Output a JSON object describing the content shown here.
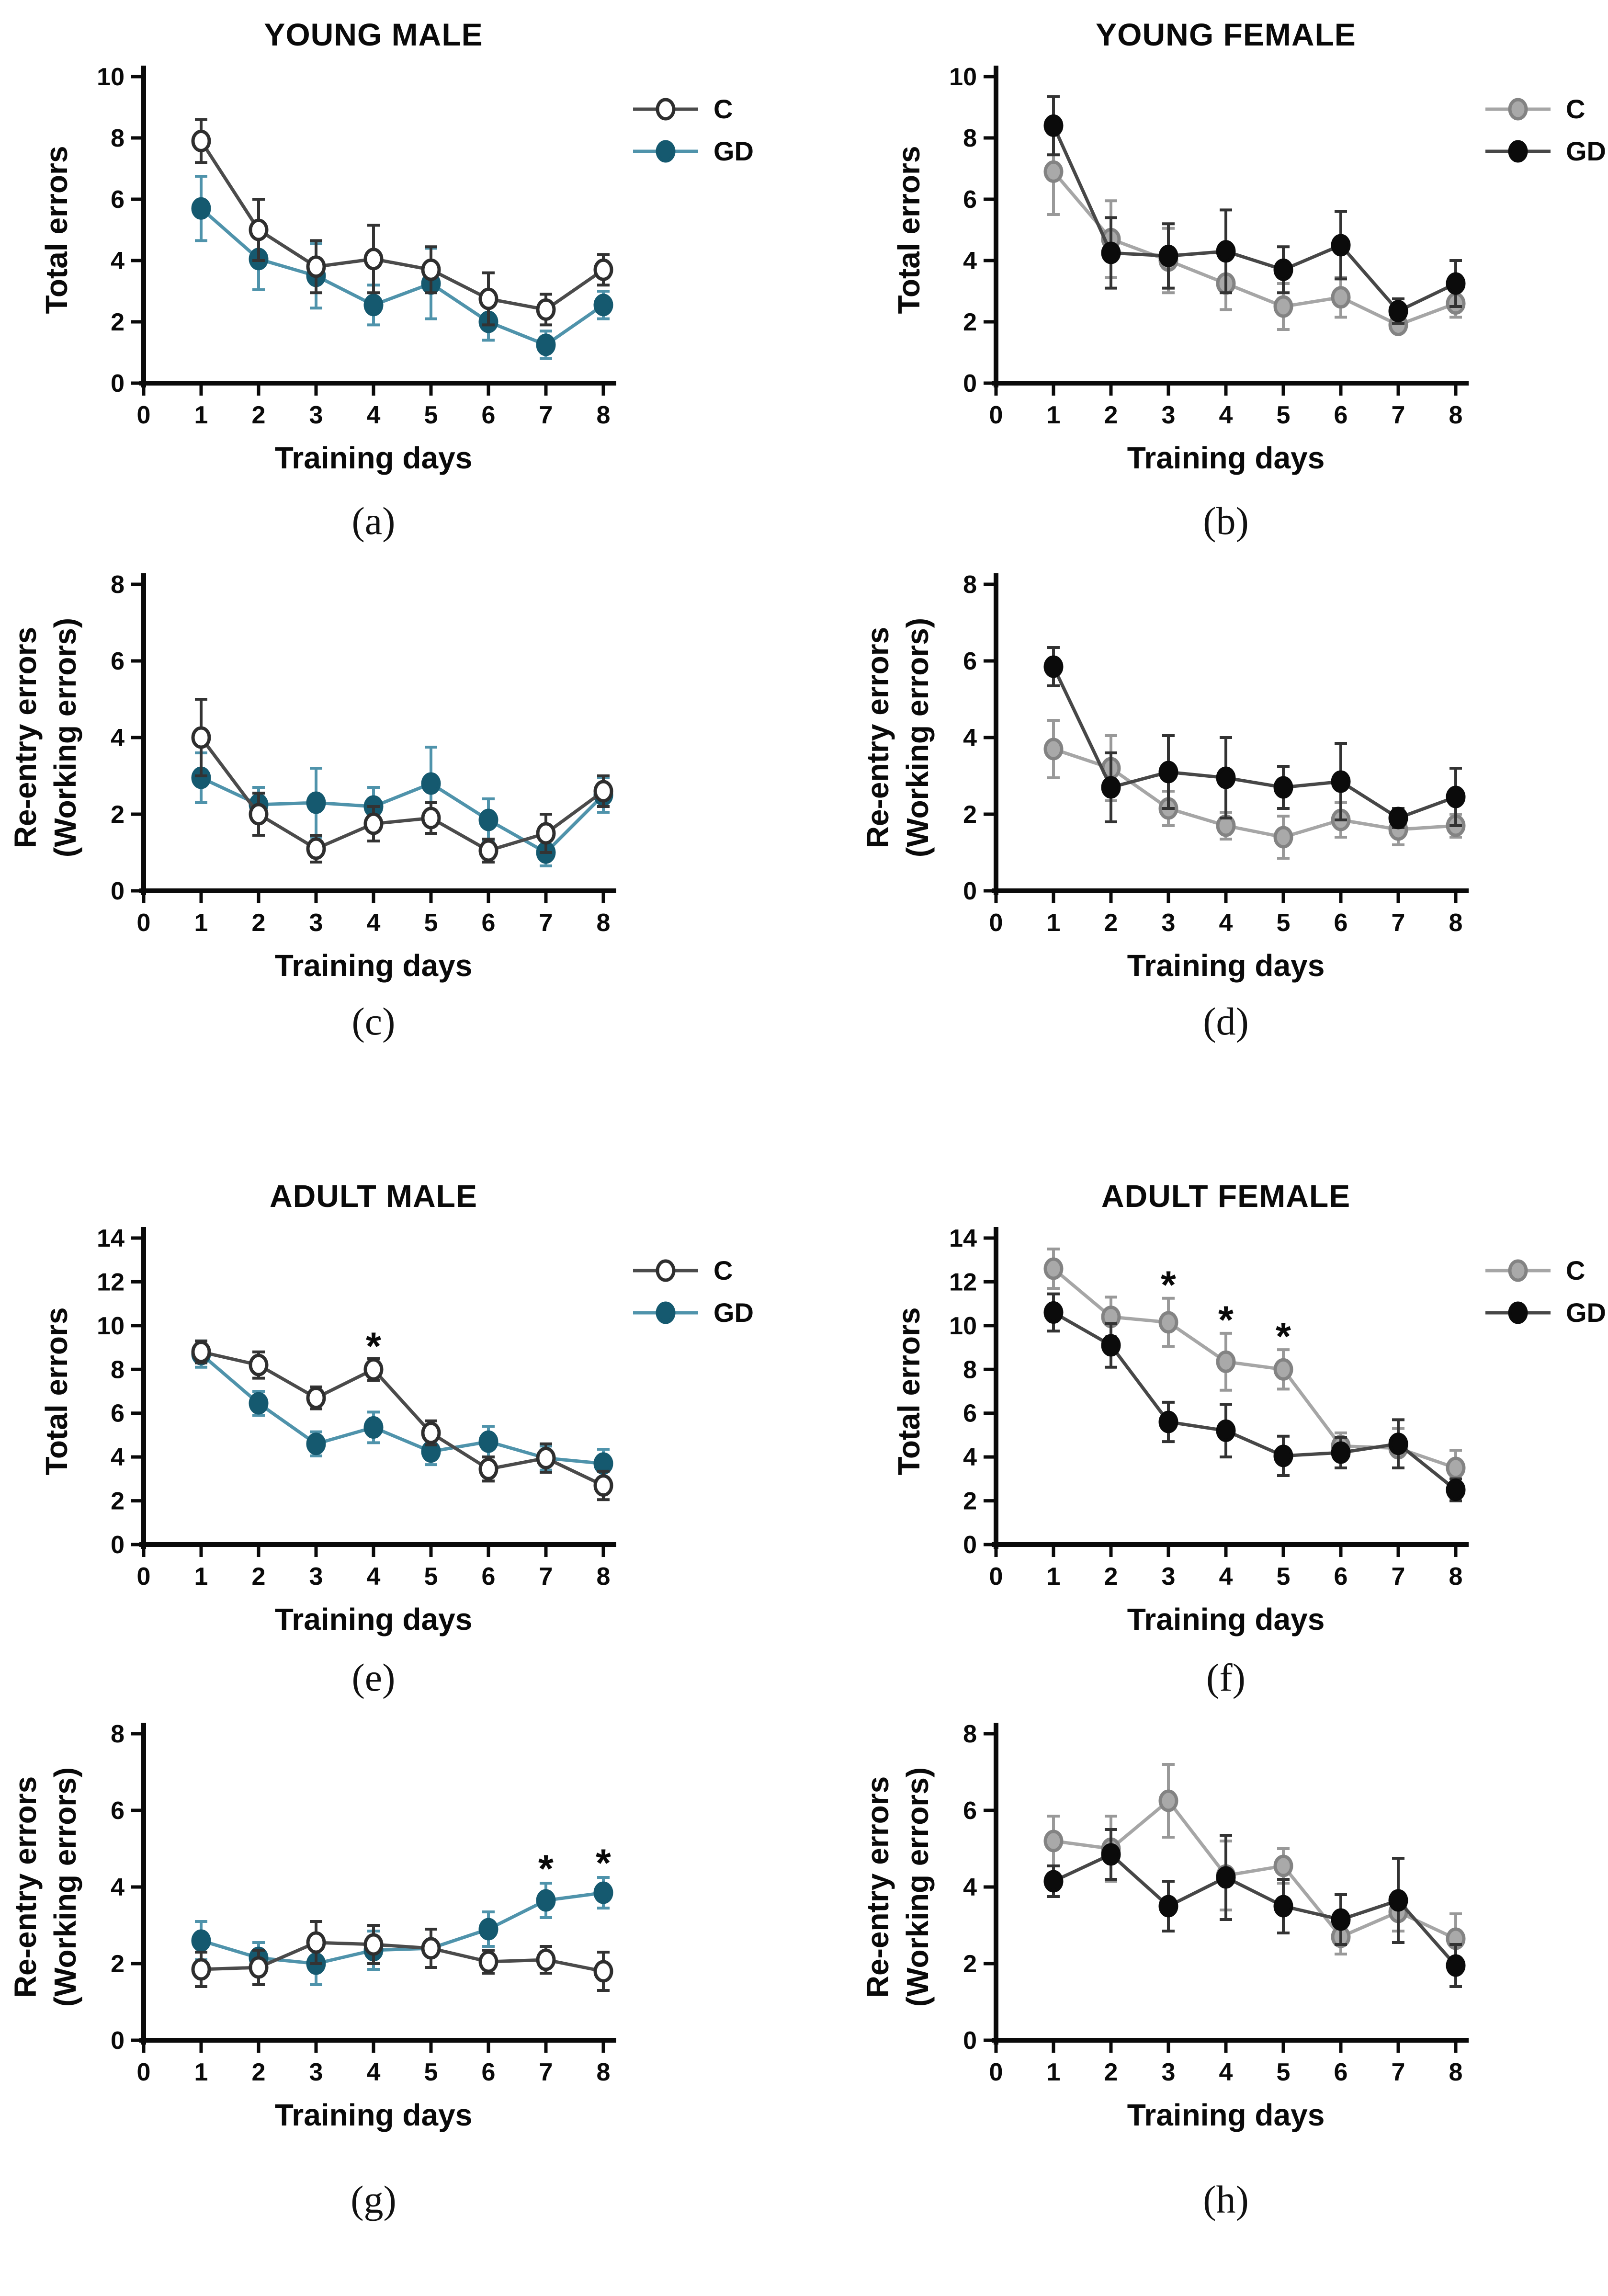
{
  "figure": {
    "background": "#ffffff",
    "x_days": [
      1,
      2,
      3,
      4,
      5,
      6,
      7,
      8
    ]
  },
  "marker_styles": {
    "open": {
      "fill": "#ffffff",
      "stroke": "#2e2e2e",
      "line": "#4b4b4b",
      "err": "#333333"
    },
    "teal": {
      "fill": "#15596f",
      "stroke": "#15596f",
      "line": "#4f93ab",
      "err": "#4f93ab"
    },
    "gray": {
      "fill": "#a9a9a9",
      "stroke": "#838383",
      "line": "#a6a6a6",
      "err": "#999999"
    },
    "black": {
      "fill": "#0b0b0b",
      "stroke": "#0b0b0b",
      "line": "#474747",
      "err": "#333333"
    }
  },
  "chart_data": [
    {
      "type": "line",
      "panel": "a",
      "caption": "(a)",
      "title": "YOUNG MALE",
      "xlabel": "Training days",
      "ylabel": [
        "Total errors"
      ],
      "xlim": [
        0,
        8
      ],
      "ylim": [
        0,
        10
      ],
      "ytick": 2,
      "grid": false,
      "legend_position": "right",
      "x": [
        1,
        2,
        3,
        4,
        5,
        6,
        7,
        8
      ],
      "series": [
        {
          "name": "GD",
          "style": "teal",
          "values": [
            5.7,
            4.05,
            3.5,
            2.55,
            3.25,
            2.0,
            1.25,
            2.55
          ],
          "errors": [
            1.05,
            1.0,
            1.05,
            0.65,
            1.15,
            0.6,
            0.45,
            0.45
          ]
        },
        {
          "name": "C",
          "style": "open",
          "values": [
            7.9,
            5.0,
            3.8,
            4.05,
            3.7,
            2.75,
            2.4,
            3.7
          ],
          "errors": [
            0.7,
            1.0,
            0.85,
            1.1,
            0.75,
            0.85,
            0.5,
            0.5
          ]
        }
      ],
      "legend": [
        {
          "label": "C",
          "style": "open"
        },
        {
          "label": "GD",
          "style": "teal"
        }
      ],
      "stars": []
    },
    {
      "type": "line",
      "panel": "b",
      "caption": "(b)",
      "title": "YOUNG FEMALE",
      "xlabel": "Training days",
      "ylabel": [
        "Total errors"
      ],
      "xlim": [
        0,
        8
      ],
      "ylim": [
        0,
        10
      ],
      "ytick": 2,
      "grid": false,
      "legend_position": "right",
      "x": [
        1,
        2,
        3,
        4,
        5,
        6,
        7,
        8
      ],
      "series": [
        {
          "name": "C",
          "style": "gray",
          "values": [
            6.9,
            4.7,
            4.0,
            3.25,
            2.5,
            2.8,
            1.9,
            2.6
          ],
          "errors": [
            1.4,
            1.25,
            1.05,
            0.85,
            0.75,
            0.65,
            0.25,
            0.45
          ]
        },
        {
          "name": "GD",
          "style": "black",
          "values": [
            8.4,
            4.25,
            4.15,
            4.3,
            3.7,
            4.5,
            2.35,
            3.25
          ],
          "errors": [
            0.95,
            1.15,
            1.05,
            1.35,
            0.75,
            1.1,
            0.4,
            0.75
          ]
        }
      ],
      "legend": [
        {
          "label": "C",
          "style": "gray"
        },
        {
          "label": "GD",
          "style": "black"
        }
      ],
      "stars": []
    },
    {
      "type": "line",
      "panel": "c",
      "caption": "(c)",
      "title": "",
      "xlabel": "Training days",
      "ylabel": [
        "Re-entry errors",
        "(Working errors)"
      ],
      "xlim": [
        0,
        8
      ],
      "ylim": [
        0,
        8
      ],
      "ytick": 2,
      "grid": false,
      "legend_position": "none",
      "x": [
        1,
        2,
        3,
        4,
        5,
        6,
        7,
        8
      ],
      "series": [
        {
          "name": "GD",
          "style": "teal",
          "values": [
            2.95,
            2.25,
            2.3,
            2.2,
            2.8,
            1.85,
            1.0,
            2.5
          ],
          "errors": [
            0.65,
            0.45,
            0.9,
            0.5,
            0.95,
            0.55,
            0.35,
            0.45
          ]
        },
        {
          "name": "C",
          "style": "open",
          "values": [
            4.0,
            2.0,
            1.1,
            1.75,
            1.9,
            1.05,
            1.5,
            2.6
          ],
          "errors": [
            1.0,
            0.55,
            0.35,
            0.45,
            0.4,
            0.3,
            0.5,
            0.4
          ]
        }
      ],
      "legend": null,
      "stars": []
    },
    {
      "type": "line",
      "panel": "d",
      "caption": "(d)",
      "title": "",
      "xlabel": "Training days",
      "ylabel": [
        "Re-entry errors",
        "(Working errors)"
      ],
      "xlim": [
        0,
        8
      ],
      "ylim": [
        0,
        8
      ],
      "ytick": 2,
      "grid": false,
      "legend_position": "none",
      "x": [
        1,
        2,
        3,
        4,
        5,
        6,
        7,
        8
      ],
      "series": [
        {
          "name": "C",
          "style": "gray",
          "values": [
            3.7,
            3.2,
            2.15,
            1.7,
            1.4,
            1.85,
            1.6,
            1.7
          ],
          "errors": [
            0.75,
            0.85,
            0.45,
            0.35,
            0.55,
            0.45,
            0.4,
            0.3
          ]
        },
        {
          "name": "GD",
          "style": "black",
          "values": [
            5.85,
            2.7,
            3.1,
            2.95,
            2.7,
            2.85,
            1.9,
            2.45
          ],
          "errors": [
            0.5,
            0.9,
            0.95,
            1.05,
            0.55,
            1.0,
            0.25,
            0.75
          ]
        }
      ],
      "legend": null,
      "stars": []
    },
    {
      "type": "line",
      "panel": "e",
      "caption": "(e)",
      "title": "ADULT MALE",
      "xlabel": "Training days",
      "ylabel": [
        "Total errors"
      ],
      "xlim": [
        0,
        8
      ],
      "ylim": [
        0,
        14
      ],
      "ytick": 2,
      "grid": false,
      "legend_position": "right",
      "x": [
        1,
        2,
        3,
        4,
        5,
        6,
        7,
        8
      ],
      "series": [
        {
          "name": "GD",
          "style": "teal",
          "values": [
            8.7,
            6.45,
            4.6,
            5.35,
            4.25,
            4.7,
            3.95,
            3.7
          ],
          "errors": [
            0.6,
            0.55,
            0.55,
            0.7,
            0.6,
            0.7,
            0.55,
            0.65
          ]
        },
        {
          "name": "C",
          "style": "open",
          "values": [
            8.8,
            8.2,
            6.7,
            8.0,
            5.1,
            3.45,
            3.95,
            2.7
          ],
          "errors": [
            0.5,
            0.6,
            0.5,
            0.5,
            0.55,
            0.55,
            0.65,
            0.65
          ]
        }
      ],
      "legend": [
        {
          "label": "C",
          "style": "open"
        },
        {
          "label": "GD",
          "style": "teal"
        }
      ],
      "stars": [
        {
          "x": 4,
          "y": 9.1
        }
      ]
    },
    {
      "type": "line",
      "panel": "f",
      "caption": "(f)",
      "title": "ADULT FEMALE",
      "xlabel": "Training days",
      "ylabel": [
        "Total errors"
      ],
      "xlim": [
        0,
        8
      ],
      "ylim": [
        0,
        14
      ],
      "ytick": 2,
      "grid": false,
      "legend_position": "right",
      "x": [
        1,
        2,
        3,
        4,
        5,
        6,
        7,
        8
      ],
      "series": [
        {
          "name": "C",
          "style": "gray",
          "values": [
            12.6,
            10.4,
            10.15,
            8.35,
            8.0,
            4.5,
            4.4,
            3.5
          ],
          "errors": [
            0.9,
            0.9,
            1.1,
            1.3,
            0.9,
            0.6,
            0.9,
            0.8
          ]
        },
        {
          "name": "GD",
          "style": "black",
          "values": [
            10.6,
            9.1,
            5.6,
            5.2,
            4.05,
            4.2,
            4.6,
            2.5
          ],
          "errors": [
            0.85,
            1.0,
            0.9,
            1.2,
            0.9,
            0.7,
            1.1,
            0.5
          ]
        }
      ],
      "legend": [
        {
          "label": "C",
          "style": "gray"
        },
        {
          "label": "GD",
          "style": "black"
        }
      ],
      "stars": [
        {
          "x": 3,
          "y": 11.9
        },
        {
          "x": 4,
          "y": 10.3
        },
        {
          "x": 5,
          "y": 9.55
        }
      ]
    },
    {
      "type": "line",
      "panel": "g",
      "caption": "(g)",
      "title": "",
      "xlabel": "Training days",
      "ylabel": [
        "Re-entry errors",
        "(Working errors)"
      ],
      "xlim": [
        0,
        8
      ],
      "ylim": [
        0,
        8
      ],
      "ytick": 2,
      "grid": false,
      "legend_position": "none",
      "x": [
        1,
        2,
        3,
        4,
        5,
        6,
        7,
        8
      ],
      "series": [
        {
          "name": "GD",
          "style": "teal",
          "values": [
            2.6,
            2.15,
            2.0,
            2.35,
            2.4,
            2.9,
            3.65,
            3.85
          ],
          "errors": [
            0.5,
            0.4,
            0.55,
            0.5,
            0.5,
            0.45,
            0.45,
            0.4
          ]
        },
        {
          "name": "C",
          "style": "open",
          "values": [
            1.85,
            1.9,
            2.55,
            2.5,
            2.4,
            2.05,
            2.1,
            1.8
          ],
          "errors": [
            0.45,
            0.45,
            0.55,
            0.5,
            0.5,
            0.3,
            0.35,
            0.5
          ]
        }
      ],
      "legend": null,
      "stars": [
        {
          "x": 7,
          "y": 4.5
        },
        {
          "x": 8,
          "y": 4.65
        }
      ]
    },
    {
      "type": "line",
      "panel": "h",
      "caption": "(h)",
      "title": "",
      "xlabel": "Training days",
      "ylabel": [
        "Re-entry errors",
        "(Working errors)"
      ],
      "xlim": [
        0,
        8
      ],
      "ylim": [
        0,
        8
      ],
      "ytick": 2,
      "grid": false,
      "legend_position": "none",
      "x": [
        1,
        2,
        3,
        4,
        5,
        6,
        7,
        8
      ],
      "series": [
        {
          "name": "C",
          "style": "gray",
          "values": [
            5.2,
            5.0,
            6.25,
            4.3,
            4.55,
            2.7,
            3.35,
            2.65
          ],
          "errors": [
            0.65,
            0.85,
            0.95,
            0.9,
            0.45,
            0.45,
            0.5,
            0.65
          ]
        },
        {
          "name": "GD",
          "style": "black",
          "values": [
            4.15,
            4.85,
            3.5,
            4.25,
            3.5,
            3.15,
            3.65,
            1.95
          ],
          "errors": [
            0.4,
            0.65,
            0.65,
            1.1,
            0.7,
            0.65,
            1.1,
            0.55
          ]
        }
      ],
      "legend": null,
      "stars": []
    }
  ]
}
